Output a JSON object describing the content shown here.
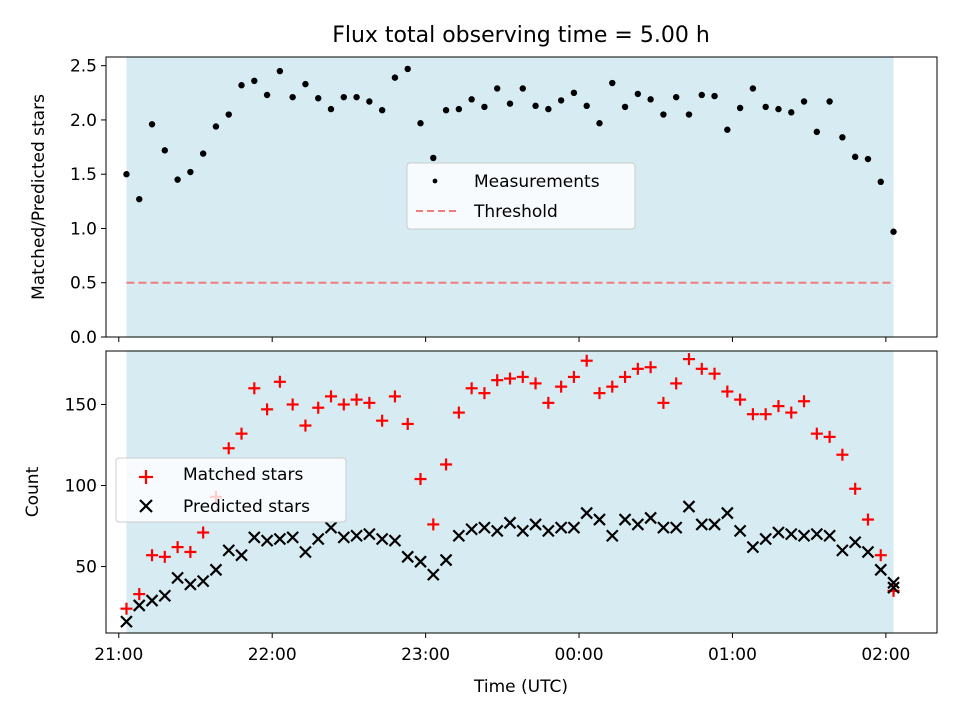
{
  "chart_data": [
    {
      "type": "scatter",
      "title": "Flux total observing time = 5.00 h",
      "xlabel": "",
      "ylabel": "Matched/Predicted stars",
      "x_unit": "UTC time",
      "xlim": [
        "20:55",
        "02:20"
      ],
      "ylim": [
        0,
        2.58
      ],
      "yticks": [
        "0.0",
        "0.5",
        "1.0",
        "1.5",
        "2.0",
        "2.5"
      ],
      "ytick_values": [
        0,
        0.5,
        1.0,
        1.5,
        2.0,
        2.5
      ],
      "shaded_span": [
        "21:03",
        "02:03"
      ],
      "shade_color": "#add8e6",
      "legend": {
        "placement": "center",
        "entries": [
          "Measurements",
          "Threshold"
        ]
      },
      "series": [
        {
          "name": "Measurements",
          "marker": "dot",
          "color": "#000000",
          "x": [
            "21:03",
            "21:08",
            "21:13",
            "21:18",
            "21:23",
            "21:28",
            "21:33",
            "21:38",
            "21:43",
            "21:48",
            "21:53",
            "21:58",
            "22:03",
            "22:08",
            "22:13",
            "22:18",
            "22:23",
            "22:28",
            "22:33",
            "22:38",
            "22:43",
            "22:48",
            "22:53",
            "22:58",
            "23:03",
            "23:08",
            "23:13",
            "23:18",
            "23:23",
            "23:28",
            "23:33",
            "23:38",
            "23:43",
            "23:48",
            "23:53",
            "23:58",
            "00:03",
            "00:08",
            "00:13",
            "00:18",
            "00:23",
            "00:28",
            "00:33",
            "00:38",
            "00:43",
            "00:48",
            "00:53",
            "00:58",
            "01:03",
            "01:08",
            "01:13",
            "01:18",
            "01:23",
            "01:28",
            "01:33",
            "01:38",
            "01:43",
            "01:48",
            "01:53",
            "01:58",
            "02:03"
          ],
          "y": [
            1.5,
            1.27,
            1.96,
            1.72,
            1.45,
            1.52,
            1.69,
            1.94,
            2.05,
            2.32,
            2.36,
            2.23,
            2.45,
            2.21,
            2.33,
            2.2,
            2.1,
            2.21,
            2.21,
            2.17,
            2.09,
            2.39,
            2.47,
            1.97,
            1.65,
            2.09,
            2.1,
            2.19,
            2.12,
            2.29,
            2.15,
            2.29,
            2.13,
            2.1,
            2.18,
            2.25,
            2.13,
            1.97,
            2.34,
            2.12,
            2.24,
            2.19,
            2.05,
            2.21,
            2.05,
            2.23,
            2.22,
            1.91,
            2.11,
            2.29,
            2.12,
            2.1,
            2.07,
            2.17,
            1.89,
            2.17,
            1.84,
            1.66,
            1.64,
            1.43,
            0.97
          ]
        },
        {
          "name": "Threshold",
          "style": "dashed",
          "color": "#f07c7c",
          "x": [
            "21:03",
            "02:03"
          ],
          "y": [
            0.5,
            0.5
          ]
        }
      ]
    },
    {
      "type": "scatter",
      "title": "",
      "xlabel": "Time (UTC)",
      "ylabel": "Count",
      "x_unit": "UTC time",
      "xlim": [
        "20:55",
        "02:20"
      ],
      "ylim": [
        9,
        183
      ],
      "yticks": [
        "50",
        "100",
        "150"
      ],
      "ytick_values": [
        50,
        100,
        150
      ],
      "xticks": [
        "21:00",
        "22:00",
        "23:00",
        "00:00",
        "01:00",
        "02:00"
      ],
      "shaded_span": [
        "21:03",
        "02:03"
      ],
      "shade_color": "#add8e6",
      "legend": {
        "placement": "center-left",
        "entries": [
          "Matched stars",
          "Predicted stars"
        ]
      },
      "series": [
        {
          "name": "Matched stars",
          "marker": "plus",
          "color": "#ff0000",
          "x": [
            "21:03",
            "21:08",
            "21:13",
            "21:18",
            "21:23",
            "21:28",
            "21:33",
            "21:38",
            "21:43",
            "21:48",
            "21:53",
            "21:58",
            "22:03",
            "22:08",
            "22:13",
            "22:18",
            "22:23",
            "22:28",
            "22:33",
            "22:38",
            "22:43",
            "22:48",
            "22:53",
            "22:58",
            "23:03",
            "23:08",
            "23:13",
            "23:18",
            "23:23",
            "23:28",
            "23:33",
            "23:38",
            "23:43",
            "23:48",
            "23:53",
            "23:58",
            "00:03",
            "00:08",
            "00:13",
            "00:18",
            "00:23",
            "00:28",
            "00:33",
            "00:38",
            "00:43",
            "00:48",
            "00:53",
            "00:58",
            "01:03",
            "01:08",
            "01:13",
            "01:18",
            "01:23",
            "01:28",
            "01:33",
            "01:38",
            "01:43",
            "01:48",
            "01:53",
            "01:58",
            "02:03"
          ],
          "y": [
            24,
            33,
            57,
            56,
            62,
            59,
            71,
            93,
            123,
            132,
            160,
            147,
            164,
            150,
            137,
            148,
            155,
            150,
            153,
            151,
            140,
            155,
            138,
            104,
            76,
            113,
            145,
            160,
            157,
            165,
            166,
            167,
            163,
            151,
            161,
            167,
            177,
            157,
            161,
            167,
            172,
            173,
            151,
            163,
            178,
            172,
            169,
            158,
            153,
            144,
            144,
            149,
            145,
            152,
            132,
            130,
            119,
            98,
            79,
            57,
            35
          ]
        },
        {
          "name": "Predicted stars",
          "marker": "x",
          "color": "#000000",
          "x": [
            "21:03",
            "21:08",
            "21:13",
            "21:18",
            "21:23",
            "21:28",
            "21:33",
            "21:38",
            "21:43",
            "21:48",
            "21:53",
            "21:58",
            "22:03",
            "22:08",
            "22:13",
            "22:18",
            "22:23",
            "22:28",
            "22:33",
            "22:38",
            "22:43",
            "22:48",
            "22:53",
            "22:58",
            "23:03",
            "23:08",
            "23:13",
            "23:18",
            "23:23",
            "23:28",
            "23:33",
            "23:38",
            "23:43",
            "23:48",
            "23:53",
            "23:58",
            "00:03",
            "00:08",
            "00:13",
            "00:18",
            "00:23",
            "00:28",
            "00:33",
            "00:38",
            "00:43",
            "00:48",
            "00:53",
            "00:58",
            "01:03",
            "01:08",
            "01:13",
            "01:18",
            "01:23",
            "01:28",
            "01:33",
            "01:38",
            "01:43",
            "01:48",
            "01:53",
            "01:58",
            "02:03"
          ],
          "y": [
            16,
            26,
            29,
            32,
            43,
            39,
            41,
            48,
            60,
            57,
            68,
            66,
            67,
            68,
            59,
            67,
            74,
            68,
            69,
            70,
            67,
            66,
            56,
            53,
            45,
            54,
            69,
            73,
            74,
            72,
            77,
            72,
            76,
            72,
            74,
            74,
            83,
            79,
            69,
            79,
            76,
            80,
            74,
            74,
            87,
            76,
            76,
            83,
            72,
            62,
            67,
            71,
            70,
            69,
            70,
            69,
            60,
            65,
            59,
            48,
            40
          ]
        },
        {
          "name": "",
          "marker": "x",
          "color": "#000000",
          "x": [
            "02:03"
          ],
          "y": [
            37
          ]
        }
      ]
    }
  ]
}
